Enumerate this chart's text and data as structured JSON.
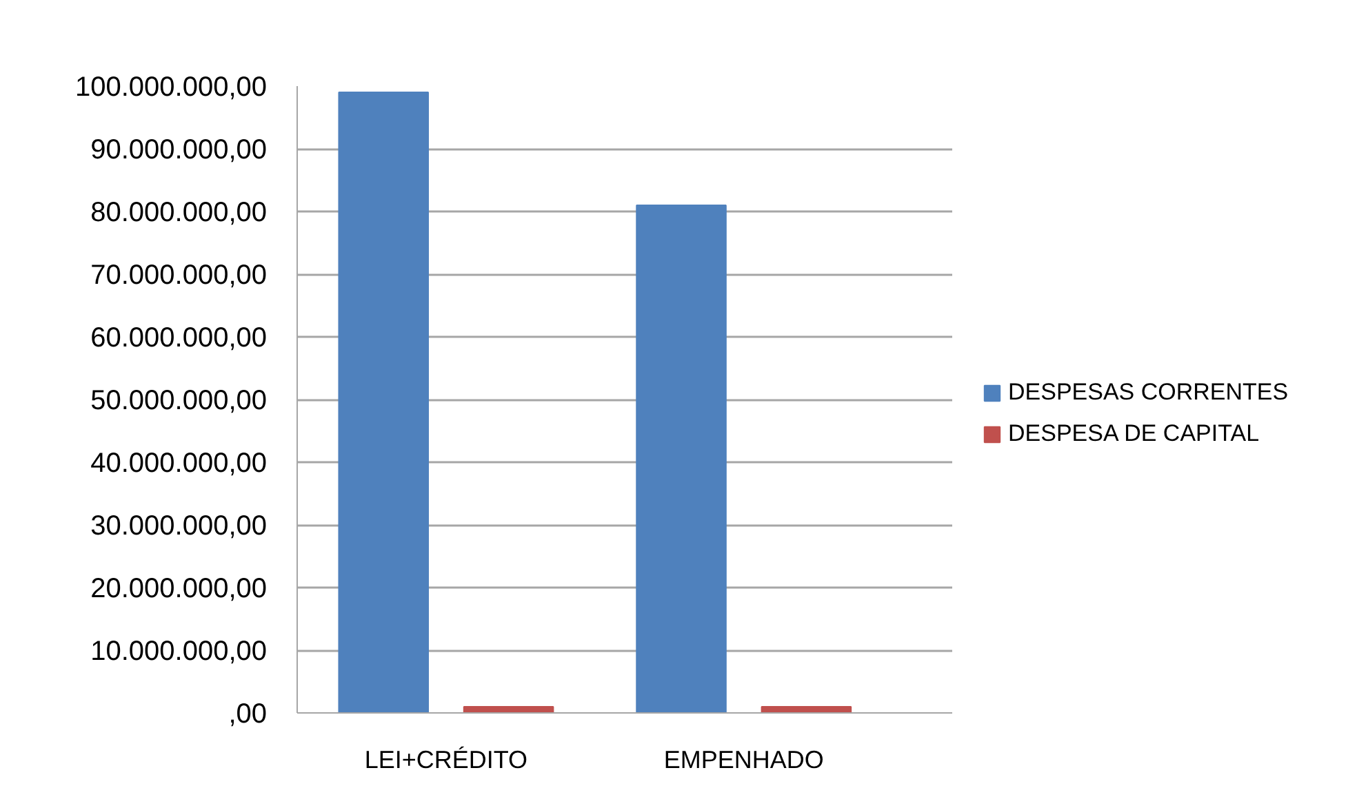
{
  "chart_data": {
    "type": "bar",
    "categories": [
      "LEI+CRÉDITO",
      "EMPENHADO"
    ],
    "series": [
      {
        "name": "DESPESAS CORRENTES",
        "color": "#4f81bd",
        "values": [
          99000000,
          81000000
        ]
      },
      {
        "name": "DESPESA DE CAPITAL",
        "color": "#c0504d",
        "values": [
          1000000,
          1000000
        ]
      }
    ],
    "ylim": [
      0,
      100000000
    ],
    "yticks": [
      {
        "value": 0,
        "label": ",00"
      },
      {
        "value": 10000000,
        "label": "10.000.000,00"
      },
      {
        "value": 20000000,
        "label": "20.000.000,00"
      },
      {
        "value": 30000000,
        "label": "30.000.000,00"
      },
      {
        "value": 40000000,
        "label": "40.000.000,00"
      },
      {
        "value": 50000000,
        "label": "50.000.000,00"
      },
      {
        "value": 60000000,
        "label": "60.000.000,00"
      },
      {
        "value": 70000000,
        "label": "70.000.000,00"
      },
      {
        "value": 80000000,
        "label": "80.000.000,00"
      },
      {
        "value": 90000000,
        "label": "90.000.000,00"
      },
      {
        "value": 100000000,
        "label": "100.000.000,00"
      }
    ],
    "grid": "y",
    "legend": "right"
  }
}
